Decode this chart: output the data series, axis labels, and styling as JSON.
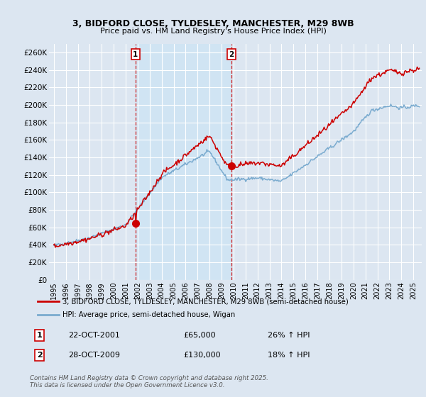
{
  "title_line1": "3, BIDFORD CLOSE, TYLDESLEY, MANCHESTER, M29 8WB",
  "title_line2": "Price paid vs. HM Land Registry's House Price Index (HPI)",
  "ylim": [
    0,
    270000
  ],
  "yticks": [
    0,
    20000,
    40000,
    60000,
    80000,
    100000,
    120000,
    140000,
    160000,
    180000,
    200000,
    220000,
    240000,
    260000
  ],
  "ytick_labels": [
    "£0",
    "£20K",
    "£40K",
    "£60K",
    "£80K",
    "£100K",
    "£120K",
    "£140K",
    "£160K",
    "£180K",
    "£200K",
    "£220K",
    "£240K",
    "£260K"
  ],
  "background_color": "#dce6f1",
  "plot_bg_color": "#dce6f1",
  "grid_color": "#ffffff",
  "line1_color": "#cc0000",
  "line2_color": "#7aabcf",
  "shade_color": "#d0e4f3",
  "legend_label1": "3, BIDFORD CLOSE, TYLDESLEY, MANCHESTER, M29 8WB (semi-detached house)",
  "legend_label2": "HPI: Average price, semi-detached house, Wigan",
  "annotation1_date": "22-OCT-2001",
  "annotation1_price": "£65,000",
  "annotation1_hpi": "26% ↑ HPI",
  "annotation2_date": "28-OCT-2009",
  "annotation2_price": "£130,000",
  "annotation2_hpi": "18% ↑ HPI",
  "footer": "Contains HM Land Registry data © Crown copyright and database right 2025.\nThis data is licensed under the Open Government Licence v3.0.",
  "vline1_x": 2001.82,
  "vline2_x": 2009.82,
  "sale1_x": 2001.82,
  "sale1_y": 65000,
  "sale2_x": 2009.82,
  "sale2_y": 130000,
  "xmin": 1994.6,
  "xmax": 2025.7
}
